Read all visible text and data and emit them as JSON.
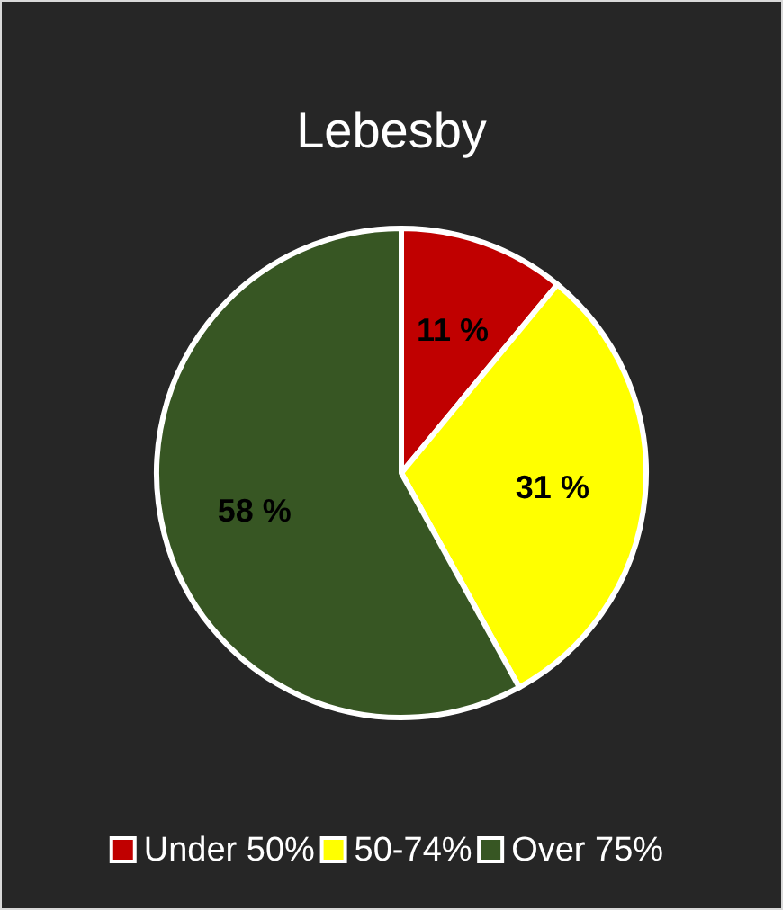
{
  "chart_data": {
    "type": "pie",
    "title": "Lebesby",
    "categories": [
      "Under 50%",
      "50-74%",
      "Over 75%"
    ],
    "values": [
      11,
      31,
      58
    ],
    "value_labels": [
      "11 %",
      "31 %",
      "58 %"
    ],
    "colors": [
      "#c00000",
      "#ffff00",
      "#375623"
    ],
    "legend": "bottom"
  }
}
